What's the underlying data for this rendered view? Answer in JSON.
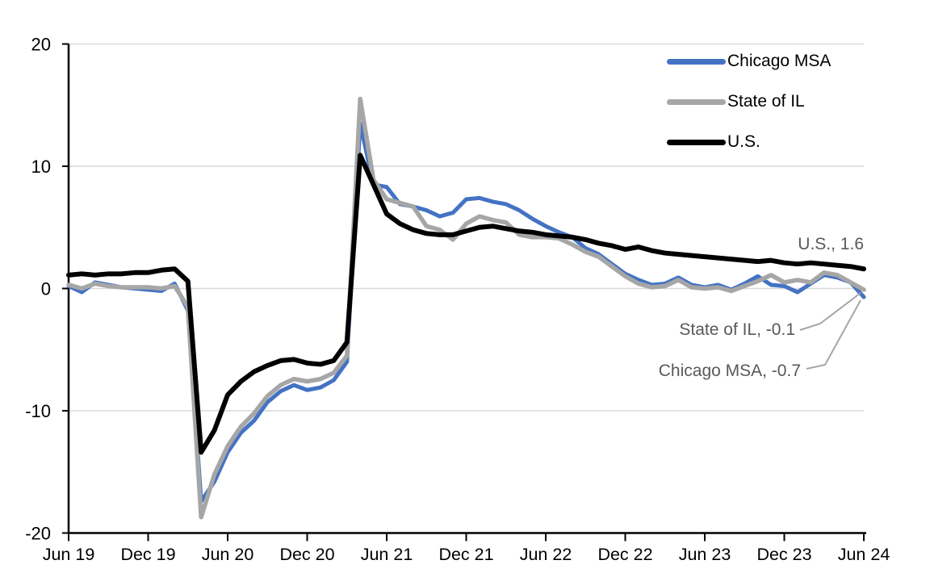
{
  "colors": {
    "background": "#FFFFFF",
    "axis": "#000000",
    "gridline": "#D9D9D9",
    "annotation_text": "#595959",
    "leader_line": "#A6A6A6",
    "chicago_blue": "#4472C4",
    "il_gray": "#A6A6A6",
    "us_black": "#000000"
  },
  "chart_data": {
    "type": "line",
    "title": "",
    "grid": "horizontal",
    "legend_position": "top-right",
    "x_axis": {
      "unit": "month",
      "first_point": "Jun 2019",
      "last_point": "Jun 2024",
      "ticks": [
        {
          "label": "Jun 19",
          "index": 0
        },
        {
          "label": "Dec 19",
          "index": 6
        },
        {
          "label": "Jun 20",
          "index": 12
        },
        {
          "label": "Dec 20",
          "index": 18
        },
        {
          "label": "Jun 21",
          "index": 24
        },
        {
          "label": "Dec 21",
          "index": 30
        },
        {
          "label": "Jun 22",
          "index": 36
        },
        {
          "label": "Dec 22",
          "index": 42
        },
        {
          "label": "Jun 23",
          "index": 48
        },
        {
          "label": "Dec 23",
          "index": 54
        },
        {
          "label": "Jun 24",
          "index": 60
        }
      ]
    },
    "y_axis": {
      "ticks": [
        20,
        10,
        0,
        -10,
        -20
      ],
      "range": [
        -20,
        20
      ]
    },
    "series": [
      {
        "name": "Chicago MSA",
        "color": "#4472C4",
        "last_value": -0.7,
        "values": [
          0.2,
          -0.3,
          0.5,
          0.3,
          0.1,
          0,
          -0.1,
          -0.2,
          0.4,
          -1.8,
          -17.4,
          -15.8,
          -13.4,
          -11.8,
          -10.8,
          -9.3,
          -8.4,
          -7.9,
          -8.3,
          -8.1,
          -7.5,
          -6.0,
          13.5,
          8.5,
          8.3,
          6.9,
          6.7,
          6.4,
          5.9,
          6.2,
          7.3,
          7.4,
          7.1,
          6.9,
          6.4,
          5.7,
          5.1,
          4.6,
          4.2,
          3.3,
          2.8,
          2.0,
          1.2,
          0.7,
          0.3,
          0.4,
          0.9,
          0.3,
          0.1,
          0.3,
          -0.1,
          0.4,
          1.0,
          0.3,
          0.2,
          -0.3,
          0.4,
          1.1,
          0.9,
          0.5,
          -0.7
        ]
      },
      {
        "name": "State of IL",
        "color": "#A6A6A6",
        "last_value": -0.1,
        "values": [
          0.3,
          0,
          0.4,
          0.2,
          0.1,
          0.1,
          0.1,
          0,
          0.2,
          -1.5,
          -18.7,
          -15.2,
          -12.9,
          -11.3,
          -10.2,
          -8.8,
          -7.9,
          -7.4,
          -7.6,
          -7.4,
          -6.9,
          -5.5,
          15.5,
          8.9,
          7.3,
          7.0,
          6.7,
          5.1,
          4.8,
          4.0,
          5.3,
          5.9,
          5.6,
          5.4,
          4.4,
          4.2,
          4.2,
          4.1,
          3.6,
          3.0,
          2.6,
          1.8,
          1.0,
          0.4,
          0.1,
          0.2,
          0.7,
          0.1,
          0,
          0.1,
          -0.2,
          0.2,
          0.6,
          1.1,
          0.5,
          0.7,
          0.5,
          1.3,
          1.1,
          0.5,
          -0.1
        ]
      },
      {
        "name": "U.S.",
        "color": "#000000",
        "last_value": 1.6,
        "values": [
          1.1,
          1.2,
          1.1,
          1.2,
          1.2,
          1.3,
          1.3,
          1.5,
          1.6,
          0.6,
          -13.4,
          -11.6,
          -8.7,
          -7.6,
          -6.8,
          -6.3,
          -5.9,
          -5.8,
          -6.1,
          -6.2,
          -5.9,
          -4.4,
          10.9,
          8.5,
          6.1,
          5.3,
          4.8,
          4.5,
          4.4,
          4.4,
          4.7,
          5.0,
          5.1,
          4.9,
          4.7,
          4.6,
          4.4,
          4.3,
          4.2,
          4.0,
          3.7,
          3.5,
          3.2,
          3.4,
          3.1,
          2.9,
          2.8,
          2.7,
          2.6,
          2.5,
          2.4,
          2.3,
          2.2,
          2.3,
          2.1,
          2.0,
          2.1,
          2.0,
          1.9,
          1.8,
          1.6
        ]
      }
    ],
    "annotations": [
      {
        "text": "U.S., 1.6",
        "series": "U.S."
      },
      {
        "text": "State of IL, -0.1",
        "series": "State of IL"
      },
      {
        "text": "Chicago MSA, -0.7",
        "series": "Chicago MSA"
      }
    ]
  }
}
